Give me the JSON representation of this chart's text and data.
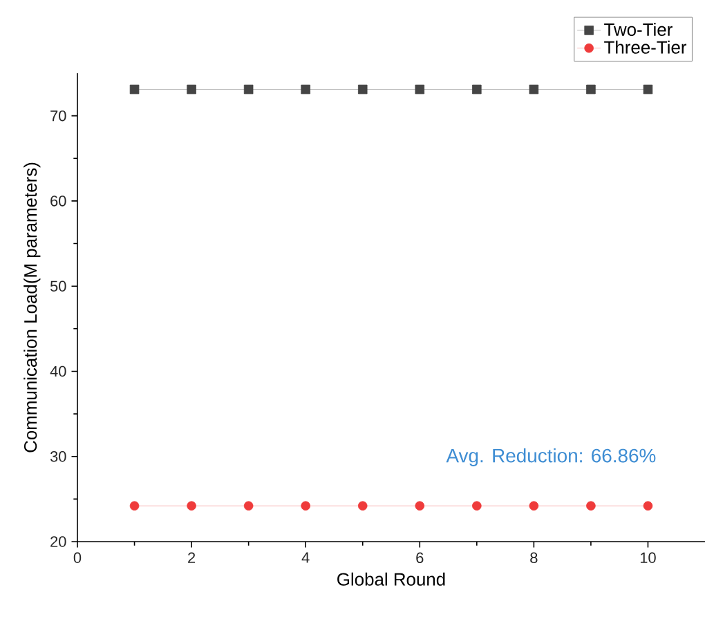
{
  "chart_data": {
    "type": "line",
    "xlabel": "Global Round",
    "ylabel": "Communication Load(M parameters)",
    "x": [
      1,
      2,
      3,
      4,
      5,
      6,
      7,
      8,
      9,
      10
    ],
    "series": [
      {
        "name": "Two-Tier",
        "color": "#454545",
        "marker": "square",
        "values": [
          73.1,
          73.1,
          73.1,
          73.1,
          73.1,
          73.1,
          73.1,
          73.1,
          73.1,
          73.1
        ]
      },
      {
        "name": "Three-Tier",
        "color": "#ef3b3b",
        "marker": "circle",
        "values": [
          24.2,
          24.2,
          24.2,
          24.2,
          24.2,
          24.2,
          24.2,
          24.2,
          24.2,
          24.2
        ]
      }
    ],
    "annotations": [
      "Avg. Reduction: 66.86%"
    ],
    "xlim": [
      0,
      11
    ],
    "xticks": [
      0,
      2,
      4,
      6,
      8,
      10
    ],
    "ylim": [
      20,
      75
    ],
    "yticks": [
      20,
      30,
      40,
      50,
      60,
      70
    ],
    "grid": false,
    "legend": "top right"
  }
}
